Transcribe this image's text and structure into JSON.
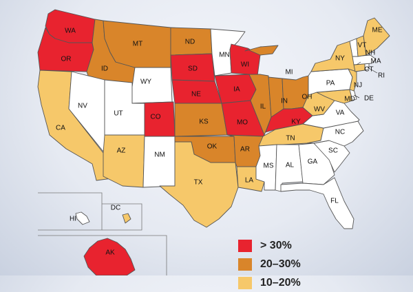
{
  "colors": {
    "gt30": "#e8232f",
    "20to30": "#d9852a",
    "10to20": "#f6c86a",
    "lt10": "#ffffff"
  },
  "states": [
    {
      "abbr": "WA",
      "cat": "gt30"
    },
    {
      "abbr": "OR",
      "cat": "gt30"
    },
    {
      "abbr": "CA",
      "cat": "10to20"
    },
    {
      "abbr": "ID",
      "cat": "20to30"
    },
    {
      "abbr": "NV",
      "cat": "lt10"
    },
    {
      "abbr": "UT",
      "cat": "lt10"
    },
    {
      "abbr": "AZ",
      "cat": "10to20"
    },
    {
      "abbr": "MT",
      "cat": "20to30"
    },
    {
      "abbr": "WY",
      "cat": "lt10"
    },
    {
      "abbr": "CO",
      "cat": "gt30"
    },
    {
      "abbr": "NM",
      "cat": "lt10"
    },
    {
      "abbr": "ND",
      "cat": "20to30"
    },
    {
      "abbr": "SD",
      "cat": "gt30"
    },
    {
      "abbr": "NE",
      "cat": "gt30"
    },
    {
      "abbr": "KS",
      "cat": "20to30"
    },
    {
      "abbr": "OK",
      "cat": "20to30"
    },
    {
      "abbr": "TX",
      "cat": "10to20"
    },
    {
      "abbr": "MN",
      "cat": "lt10"
    },
    {
      "abbr": "IA",
      "cat": "gt30"
    },
    {
      "abbr": "MO",
      "cat": "gt30"
    },
    {
      "abbr": "AR",
      "cat": "20to30"
    },
    {
      "abbr": "LA",
      "cat": "10to20"
    },
    {
      "abbr": "WI",
      "cat": "gt30"
    },
    {
      "abbr": "IL",
      "cat": "20to30"
    },
    {
      "abbr": "MI",
      "cat": "20to30"
    },
    {
      "abbr": "IN",
      "cat": "20to30"
    },
    {
      "abbr": "OH",
      "cat": "20to30"
    },
    {
      "abbr": "KY",
      "cat": "gt30"
    },
    {
      "abbr": "TN",
      "cat": "10to20"
    },
    {
      "abbr": "MS",
      "cat": "lt10"
    },
    {
      "abbr": "AL",
      "cat": "lt10"
    },
    {
      "abbr": "GA",
      "cat": "lt10"
    },
    {
      "abbr": "FL",
      "cat": "lt10"
    },
    {
      "abbr": "SC",
      "cat": "lt10"
    },
    {
      "abbr": "NC",
      "cat": "lt10"
    },
    {
      "abbr": "VA",
      "cat": "lt10"
    },
    {
      "abbr": "WV",
      "cat": "10to20"
    },
    {
      "abbr": "PA",
      "cat": "lt10"
    },
    {
      "abbr": "NY",
      "cat": "10to20"
    },
    {
      "abbr": "VT",
      "cat": "lt10"
    },
    {
      "abbr": "NH",
      "cat": "10to20"
    },
    {
      "abbr": "ME",
      "cat": "10to20"
    },
    {
      "abbr": "MA",
      "cat": "lt10"
    },
    {
      "abbr": "RI",
      "cat": "lt10"
    },
    {
      "abbr": "CT",
      "cat": "10to20"
    },
    {
      "abbr": "NJ",
      "cat": "10to20"
    },
    {
      "abbr": "DE",
      "cat": "lt10"
    },
    {
      "abbr": "MD",
      "cat": "10to20"
    },
    {
      "abbr": "DC",
      "cat": "10to20"
    },
    {
      "abbr": "HI",
      "cat": "lt10"
    },
    {
      "abbr": "AK",
      "cat": "gt30"
    }
  ],
  "legend": [
    {
      "label": "> 30%",
      "cat": "gt30"
    },
    {
      "label": "20–30%",
      "cat": "20to30"
    },
    {
      "label": "10–20%",
      "cat": "10to20"
    }
  ]
}
